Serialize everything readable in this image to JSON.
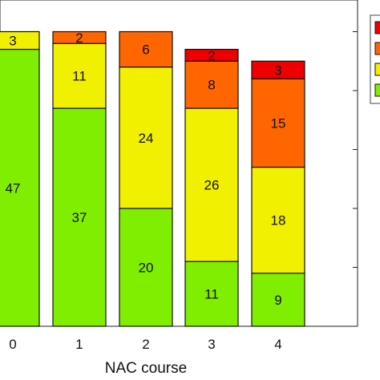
{
  "chart_data": {
    "type": "bar",
    "stacked": true,
    "categories": [
      "0",
      "1",
      "2",
      "3",
      "4"
    ],
    "xlabel": "NAC course",
    "ylabel": "",
    "title": "",
    "legend_position": "top-right (partially cropped)",
    "grid": false,
    "series": [
      {
        "key": "green",
        "color": "#80ee00",
        "values": [
          47,
          37,
          20,
          11,
          9
        ]
      },
      {
        "key": "yellow",
        "color": "#f0f000",
        "values": [
          3,
          11,
          24,
          26,
          18
        ]
      },
      {
        "key": "orange",
        "color": "#ff6600",
        "values": [
          0,
          2,
          6,
          8,
          15
        ]
      },
      {
        "key": "red",
        "color": "#ee0000",
        "values": [
          0,
          0,
          0,
          2,
          3
        ]
      }
    ]
  }
}
